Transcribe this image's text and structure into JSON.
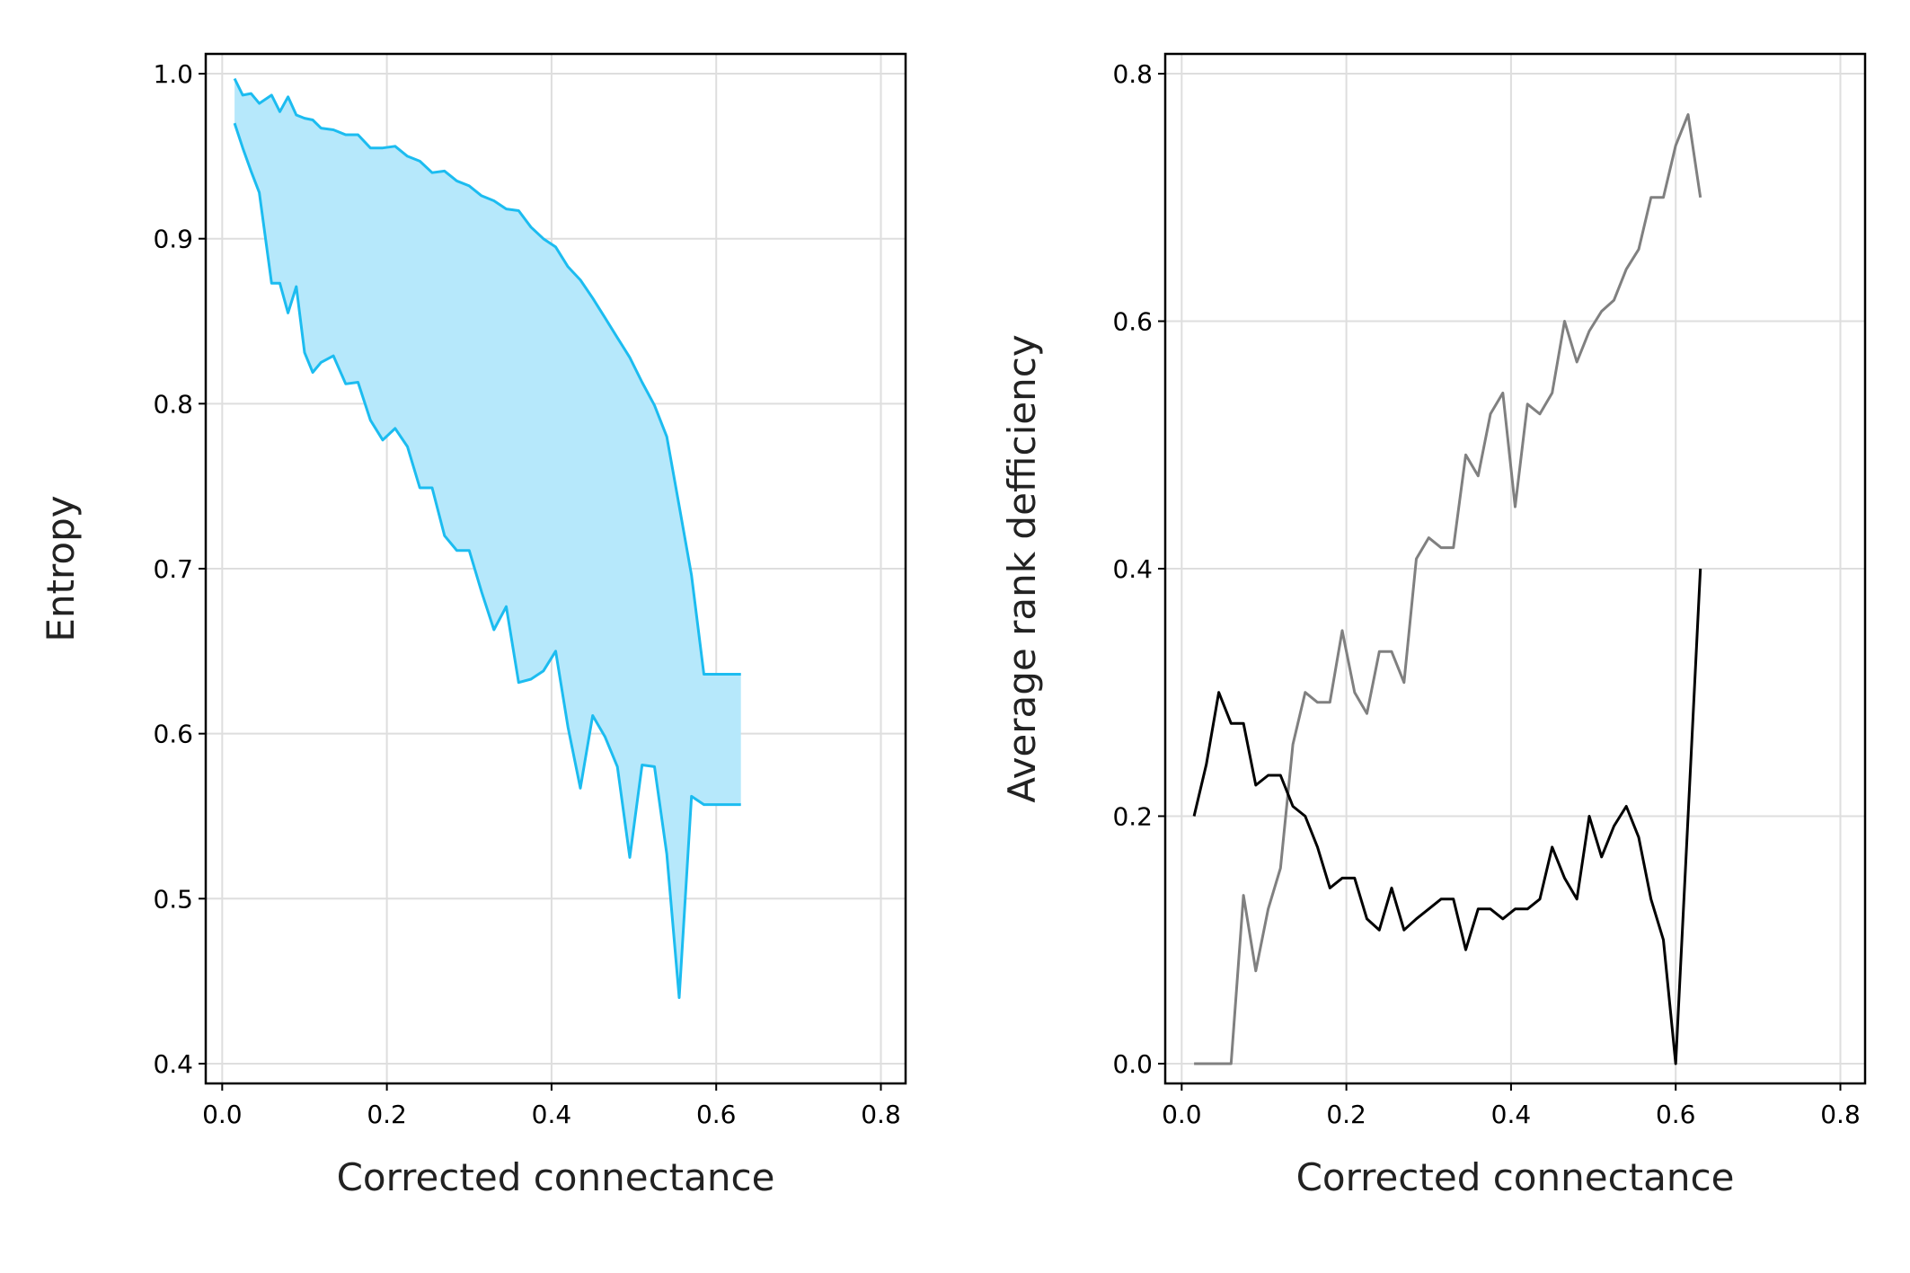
{
  "chart_data": [
    {
      "type": "area",
      "xlabel": "Corrected connectance",
      "ylabel": "Entropy",
      "xlim": [
        -0.02,
        0.83
      ],
      "ylim": [
        0.388,
        1.012
      ],
      "xticks": [
        "0.0",
        "0.2",
        "0.4",
        "0.6",
        "0.8"
      ],
      "yticks": [
        "0.4",
        "0.5",
        "0.6",
        "0.7",
        "0.8",
        "0.9",
        "1.0"
      ],
      "grid": true,
      "fill_color": "#b6e8fb",
      "line_color": "#1cbcf0",
      "series": [
        {
          "x": [
            0.015,
            0.025,
            0.035,
            0.045,
            0.06,
            0.07,
            0.08,
            0.09,
            0.1,
            0.11,
            0.12,
            0.135,
            0.15,
            0.165,
            0.18,
            0.195,
            0.21,
            0.225,
            0.24,
            0.255,
            0.27,
            0.285,
            0.3,
            0.315,
            0.33,
            0.345,
            0.36,
            0.375,
            0.39,
            0.405,
            0.42,
            0.435,
            0.45,
            0.465,
            0.48,
            0.495,
            0.51,
            0.525,
            0.54,
            0.555,
            0.57,
            0.585,
            0.6,
            0.615,
            0.63
          ],
          "values": [
            0.997,
            0.987,
            0.988,
            0.982,
            0.987,
            0.977,
            0.986,
            0.975,
            0.973,
            0.972,
            0.967,
            0.966,
            0.963,
            0.963,
            0.955,
            0.955,
            0.956,
            0.95,
            0.947,
            0.94,
            0.941,
            0.935,
            0.932,
            0.926,
            0.923,
            0.918,
            0.917,
            0.907,
            0.9,
            0.895,
            0.883,
            0.875,
            0.864,
            0.852,
            0.84,
            0.828,
            0.813,
            0.799,
            0.78,
            0.738,
            0.696,
            0.636,
            0.636,
            0.636,
            0.636
          ]
        },
        {
          "x": [
            0.015,
            0.025,
            0.035,
            0.045,
            0.06,
            0.07,
            0.08,
            0.09,
            0.1,
            0.11,
            0.12,
            0.135,
            0.15,
            0.165,
            0.18,
            0.195,
            0.21,
            0.225,
            0.24,
            0.255,
            0.27,
            0.285,
            0.3,
            0.315,
            0.33,
            0.345,
            0.36,
            0.375,
            0.39,
            0.405,
            0.42,
            0.435,
            0.45,
            0.465,
            0.48,
            0.495,
            0.51,
            0.525,
            0.54,
            0.555,
            0.57,
            0.585,
            0.6,
            0.615,
            0.63
          ],
          "values": [
            0.97,
            0.955,
            0.941,
            0.928,
            0.873,
            0.873,
            0.855,
            0.871,
            0.831,
            0.819,
            0.825,
            0.829,
            0.812,
            0.813,
            0.79,
            0.778,
            0.785,
            0.774,
            0.749,
            0.749,
            0.72,
            0.711,
            0.711,
            0.686,
            0.663,
            0.677,
            0.631,
            0.633,
            0.638,
            0.65,
            0.604,
            0.567,
            0.611,
            0.598,
            0.58,
            0.525,
            0.581,
            0.58,
            0.527,
            0.44,
            0.562,
            0.557,
            0.557,
            0.557,
            0.557
          ]
        }
      ]
    },
    {
      "type": "line",
      "xlabel": "Corrected connectance",
      "ylabel": "Average rank defficiency",
      "xlim": [
        -0.02,
        0.83
      ],
      "ylim": [
        -0.016,
        0.816
      ],
      "xticks": [
        "0.0",
        "0.2",
        "0.4",
        "0.6",
        "0.8"
      ],
      "yticks": [
        "0.0",
        "0.2",
        "0.4",
        "0.6",
        "0.8"
      ],
      "grid": true,
      "series": [
        {
          "color": "#808080",
          "x": [
            0.015,
            0.03,
            0.045,
            0.06,
            0.075,
            0.09,
            0.105,
            0.12,
            0.135,
            0.15,
            0.165,
            0.18,
            0.195,
            0.21,
            0.225,
            0.24,
            0.255,
            0.27,
            0.285,
            0.3,
            0.315,
            0.33,
            0.345,
            0.36,
            0.375,
            0.39,
            0.405,
            0.42,
            0.435,
            0.45,
            0.465,
            0.48,
            0.495,
            0.51,
            0.525,
            0.54,
            0.555,
            0.57,
            0.585,
            0.6,
            0.615,
            0.63
          ],
          "values": [
            0.0,
            0.0,
            0.0,
            0.0,
            0.136,
            0.075,
            0.125,
            0.158,
            0.258,
            0.3,
            0.292,
            0.292,
            0.35,
            0.3,
            0.283,
            0.333,
            0.333,
            0.308,
            0.408,
            0.425,
            0.417,
            0.417,
            0.492,
            0.475,
            0.525,
            0.542,
            0.45,
            0.533,
            0.525,
            0.542,
            0.6,
            0.567,
            0.592,
            0.608,
            0.617,
            0.642,
            0.658,
            0.7,
            0.7,
            0.742,
            0.767,
            0.7
          ]
        },
        {
          "color": "#000000",
          "x": [
            0.015,
            0.03,
            0.045,
            0.06,
            0.075,
            0.09,
            0.105,
            0.12,
            0.135,
            0.15,
            0.165,
            0.18,
            0.195,
            0.21,
            0.225,
            0.24,
            0.255,
            0.27,
            0.285,
            0.3,
            0.315,
            0.33,
            0.345,
            0.36,
            0.375,
            0.39,
            0.405,
            0.42,
            0.435,
            0.45,
            0.465,
            0.48,
            0.495,
            0.51,
            0.525,
            0.54,
            0.555,
            0.57,
            0.585,
            0.6,
            0.615,
            0.63
          ],
          "values": [
            0.2,
            0.242,
            0.3,
            0.275,
            0.275,
            0.225,
            0.233,
            0.233,
            0.208,
            0.2,
            0.175,
            0.142,
            0.15,
            0.15,
            0.117,
            0.108,
            0.142,
            0.108,
            0.117,
            0.125,
            0.133,
            0.133,
            0.092,
            0.125,
            0.125,
            0.117,
            0.125,
            0.125,
            0.133,
            0.175,
            0.15,
            0.133,
            0.2,
            0.167,
            0.192,
            0.208,
            0.183,
            0.133,
            0.1,
            0.0,
            0.2,
            0.4
          ]
        }
      ]
    }
  ]
}
